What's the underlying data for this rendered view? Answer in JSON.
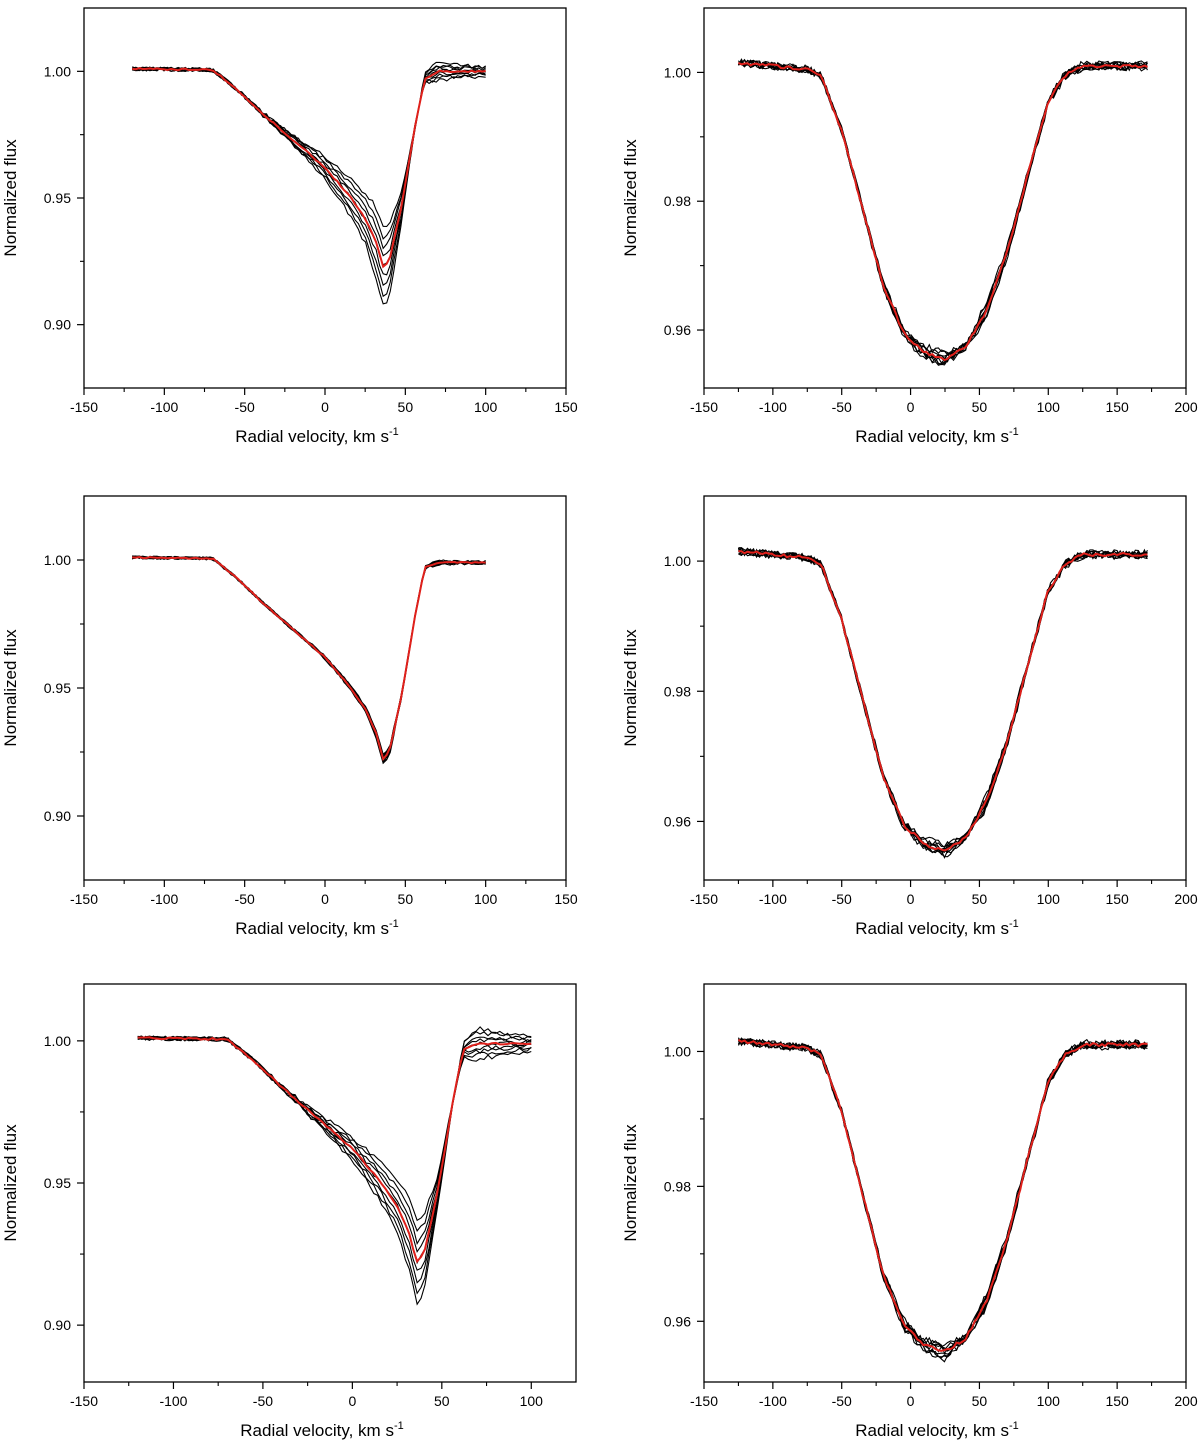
{
  "chart_data": [
    {
      "type": "line",
      "xlabel": "Radial velocity, km s",
      "xlabel_sup": "-1",
      "ylabel": "Normalized flux",
      "xlim": [
        -150,
        150
      ],
      "ylim": [
        0.875,
        1.025
      ],
      "xticks": [
        -150,
        -100,
        -50,
        0,
        50,
        100,
        150
      ],
      "yticks": [
        0.9,
        0.95,
        1.0
      ],
      "yticklabels": [
        "0.90",
        "0.95",
        "1.00"
      ],
      "minor_yticks": [
        0.925,
        0.975
      ],
      "colors": {
        "profiles": "#000000",
        "mean": "#e0201b"
      },
      "profile": {
        "vmin": -120,
        "vmax": 100,
        "left_wing": [
          [
            -120,
            1.001
          ],
          [
            -70,
            1.0006
          ],
          [
            -55,
            0.993
          ],
          [
            -40,
            0.984
          ],
          [
            -20,
            0.973
          ],
          [
            0,
            0.962
          ],
          [
            15,
            0.951
          ],
          [
            25,
            0.942
          ],
          [
            32,
            0.932
          ],
          [
            36,
            0.923
          ],
          [
            40,
            0.925
          ]
        ],
        "right_wing": [
          [
            40,
            0.925
          ],
          [
            48,
            0.948
          ],
          [
            56,
            0.978
          ],
          [
            62,
            0.997
          ],
          [
            70,
            1.0
          ],
          [
            100,
            1.0
          ]
        ],
        "depth_spread": 0.015,
        "right_spread": 0.0035,
        "n_profiles": 9,
        "noise": 0.0008
      }
    },
    {
      "type": "line",
      "xlabel": "Radial velocity, km s",
      "xlabel_sup": "-1",
      "ylabel": "Normalized flux",
      "xlim": [
        -150,
        200
      ],
      "ylim": [
        0.951,
        1.01
      ],
      "xticks": [
        -150,
        -100,
        -50,
        0,
        50,
        100,
        150,
        200
      ],
      "yticks": [
        0.96,
        0.98,
        1.0
      ],
      "yticklabels": [
        "0.96",
        "0.98",
        "1.00"
      ],
      "minor_yticks": [
        0.97,
        0.99
      ],
      "colors": {
        "profiles": "#000000",
        "mean": "#e0201b"
      },
      "profile": {
        "vmin": -125,
        "vmax": 173,
        "left_wing": [
          [
            -125,
            1.0015
          ],
          [
            -75,
            1.0005
          ],
          [
            -65,
            0.9995
          ],
          [
            -50,
            0.991
          ],
          [
            -35,
            0.979
          ],
          [
            -20,
            0.967
          ],
          [
            -5,
            0.9595
          ],
          [
            10,
            0.9565
          ],
          [
            25,
            0.9555
          ]
        ],
        "right_wing": [
          [
            25,
            0.9555
          ],
          [
            40,
            0.9575
          ],
          [
            55,
            0.963
          ],
          [
            70,
            0.972
          ],
          [
            85,
            0.984
          ],
          [
            100,
            0.9955
          ],
          [
            112,
            0.9995
          ],
          [
            125,
            1.001
          ],
          [
            173,
            1.001
          ]
        ],
        "depth_spread": 0.001,
        "right_spread": 0.0012,
        "n_profiles": 9,
        "noise": 0.0006
      }
    },
    {
      "type": "line",
      "xlabel": "Radial velocity, km s",
      "xlabel_sup": "-1",
      "ylabel": "Normalized flux",
      "xlim": [
        -150,
        150
      ],
      "ylim": [
        0.875,
        1.025
      ],
      "xticks": [
        -150,
        -100,
        -50,
        0,
        50,
        100,
        150
      ],
      "yticks": [
        0.9,
        0.95,
        1.0
      ],
      "yticklabels": [
        "0.90",
        "0.95",
        "1.00"
      ],
      "minor_yticks": [
        0.925,
        0.975
      ],
      "colors": {
        "profiles": "#000000",
        "mean": "#e0201b"
      },
      "profile": {
        "vmin": -120,
        "vmax": 100,
        "left_wing": [
          [
            -120,
            1.001
          ],
          [
            -70,
            1.0006
          ],
          [
            -55,
            0.993
          ],
          [
            -40,
            0.984
          ],
          [
            -20,
            0.973
          ],
          [
            0,
            0.962
          ],
          [
            15,
            0.951
          ],
          [
            25,
            0.942
          ],
          [
            32,
            0.932
          ],
          [
            36,
            0.922
          ],
          [
            40,
            0.925
          ]
        ],
        "right_wing": [
          [
            40,
            0.925
          ],
          [
            48,
            0.948
          ],
          [
            56,
            0.978
          ],
          [
            62,
            0.997
          ],
          [
            70,
            0.999
          ],
          [
            100,
            0.999
          ]
        ],
        "depth_spread": 0.0015,
        "right_spread": 0.0007,
        "n_profiles": 9,
        "noise": 0.0006
      }
    },
    {
      "type": "line",
      "xlabel": "Radial velocity, km s",
      "xlabel_sup": "-1",
      "ylabel": "Normalized flux",
      "xlim": [
        -150,
        200
      ],
      "ylim": [
        0.951,
        1.01
      ],
      "xticks": [
        -150,
        -100,
        -50,
        0,
        50,
        100,
        150,
        200
      ],
      "yticks": [
        0.96,
        0.98,
        1.0
      ],
      "yticklabels": [
        "0.96",
        "0.98",
        "1.00"
      ],
      "minor_yticks": [
        0.97,
        0.99
      ],
      "colors": {
        "profiles": "#000000",
        "mean": "#e0201b"
      },
      "profile": {
        "vmin": -125,
        "vmax": 173,
        "left_wing": [
          [
            -125,
            1.0015
          ],
          [
            -75,
            1.0005
          ],
          [
            -65,
            0.9995
          ],
          [
            -50,
            0.991
          ],
          [
            -35,
            0.979
          ],
          [
            -20,
            0.967
          ],
          [
            -5,
            0.9595
          ],
          [
            10,
            0.9565
          ],
          [
            25,
            0.9555
          ]
        ],
        "right_wing": [
          [
            25,
            0.9555
          ],
          [
            40,
            0.9575
          ],
          [
            55,
            0.963
          ],
          [
            70,
            0.972
          ],
          [
            85,
            0.984
          ],
          [
            100,
            0.9955
          ],
          [
            112,
            0.9995
          ],
          [
            125,
            1.001
          ],
          [
            173,
            1.001
          ]
        ],
        "depth_spread": 0.0008,
        "right_spread": 0.0008,
        "n_profiles": 9,
        "noise": 0.0006
      }
    },
    {
      "type": "line",
      "xlabel": "Radial velocity, km s",
      "xlabel_sup": "-1",
      "ylabel": "Normalized flux",
      "xlim": [
        -150,
        125
      ],
      "ylim": [
        0.88,
        1.02
      ],
      "xticks": [
        -150,
        -100,
        -50,
        0,
        50,
        100
      ],
      "yticks": [
        0.9,
        0.95,
        1.0
      ],
      "yticklabels": [
        "0.90",
        "0.95",
        "1.00"
      ],
      "minor_yticks": [
        0.925,
        0.975
      ],
      "colors": {
        "profiles": "#000000",
        "mean": "#e0201b"
      },
      "profile": {
        "vmin": -120,
        "vmax": 100,
        "left_wing": [
          [
            -120,
            1.001
          ],
          [
            -70,
            1.0006
          ],
          [
            -55,
            0.993
          ],
          [
            -40,
            0.984
          ],
          [
            -20,
            0.973
          ],
          [
            0,
            0.962
          ],
          [
            15,
            0.951
          ],
          [
            25,
            0.942
          ],
          [
            32,
            0.932
          ],
          [
            36,
            0.922
          ],
          [
            40,
            0.925
          ]
        ],
        "right_wing": [
          [
            40,
            0.925
          ],
          [
            48,
            0.948
          ],
          [
            56,
            0.978
          ],
          [
            62,
            0.997
          ],
          [
            70,
            0.999
          ],
          [
            100,
            0.999
          ]
        ],
        "depth_spread": 0.014,
        "right_spread": 0.0055,
        "n_profiles": 9,
        "noise": 0.0008
      }
    },
    {
      "type": "line",
      "xlabel": "Radial velocity, km s",
      "xlabel_sup": "-1",
      "ylabel": "Normalized flux",
      "xlim": [
        -150,
        200
      ],
      "ylim": [
        0.951,
        1.01
      ],
      "xticks": [
        -150,
        -100,
        -50,
        0,
        50,
        100,
        150,
        200
      ],
      "yticks": [
        0.96,
        0.98,
        1.0
      ],
      "yticklabels": [
        "0.96",
        "0.98",
        "1.00"
      ],
      "minor_yticks": [
        0.97,
        0.99
      ],
      "colors": {
        "profiles": "#000000",
        "mean": "#e0201b"
      },
      "profile": {
        "vmin": -125,
        "vmax": 173,
        "left_wing": [
          [
            -125,
            1.0015
          ],
          [
            -75,
            1.0005
          ],
          [
            -65,
            0.9995
          ],
          [
            -50,
            0.991
          ],
          [
            -35,
            0.979
          ],
          [
            -20,
            0.967
          ],
          [
            -5,
            0.9595
          ],
          [
            10,
            0.9565
          ],
          [
            25,
            0.9555
          ]
        ],
        "right_wing": [
          [
            25,
            0.9555
          ],
          [
            40,
            0.9575
          ],
          [
            55,
            0.963
          ],
          [
            70,
            0.972
          ],
          [
            85,
            0.984
          ],
          [
            100,
            0.9955
          ],
          [
            112,
            0.9995
          ],
          [
            125,
            1.001
          ],
          [
            173,
            1.001
          ]
        ],
        "depth_spread": 0.001,
        "right_spread": 0.001,
        "n_profiles": 9,
        "noise": 0.0006
      }
    }
  ]
}
